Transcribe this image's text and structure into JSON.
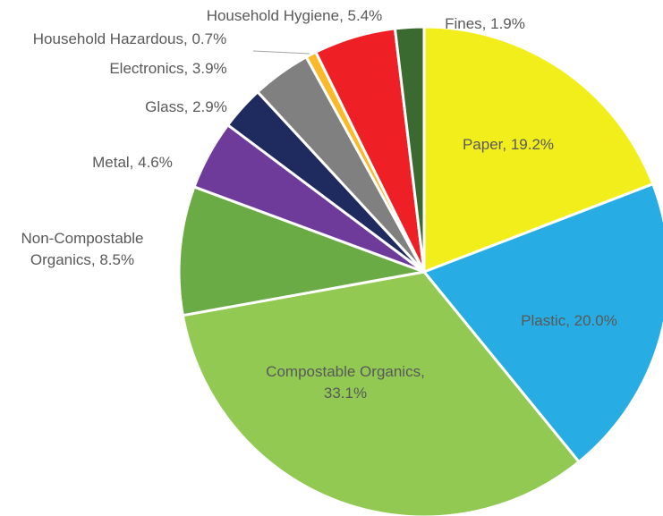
{
  "chart_data": {
    "type": "pie",
    "title": "",
    "categories": [
      "Paper",
      "Plastic",
      "Compostable Organics",
      "Non-Compostable Organics",
      "Metal",
      "Glass",
      "Electronics",
      "Household Hazardous",
      "Household Hygiene",
      "Fines"
    ],
    "values": [
      19.2,
      20.0,
      33.1,
      8.5,
      4.6,
      2.9,
      3.9,
      0.7,
      5.4,
      1.9
    ],
    "labels": [
      [
        "Paper, 19.2%"
      ],
      [
        "Plastic, 20.0%"
      ],
      [
        "Compostable Organics,",
        "33.1%"
      ],
      [
        "Non-Compostable",
        "Organics, 8.5%"
      ],
      [
        "Metal, 4.6%"
      ],
      [
        "Glass, 2.9%"
      ],
      [
        "Electronics, 3.9%"
      ],
      [
        "Household Hazardous, 0.7%"
      ],
      [
        "Household Hygiene, 5.4%"
      ],
      [
        "Fines, 1.9%"
      ]
    ],
    "colors": [
      "#f2ee1c",
      "#27ade3",
      "#92c953",
      "#6aab46",
      "#6e3b9b",
      "#1f2b5e",
      "#808080",
      "#fbb829",
      "#ee2026",
      "#3b6a30"
    ],
    "start_angle_deg": 0,
    "direction": "clockwise",
    "legend": "none"
  }
}
